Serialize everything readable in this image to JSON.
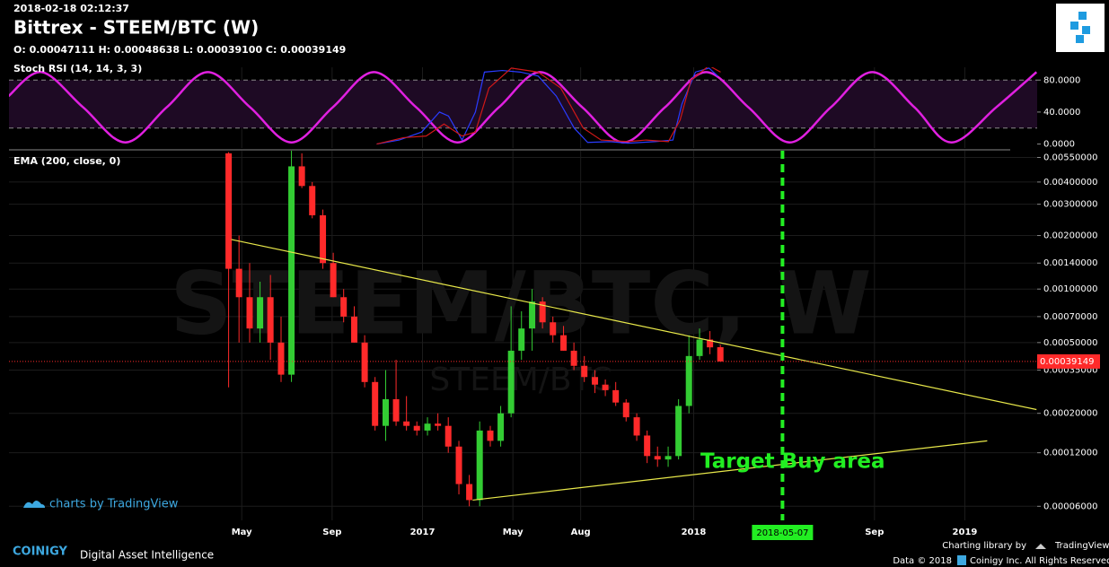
{
  "header": {
    "timestamp": "2018-02-18 02:12:37",
    "title": "Bittrex - STEEM/BTC (W)",
    "ohlc": "O: 0.00047111 H: 0.00048638 L: 0.00039100 C: 0.00039149"
  },
  "footer": {
    "tv_badge": "charts by TradingView",
    "brand": "COINIGY",
    "tagline": "Digital Asset Intelligence",
    "library": "Charting library by",
    "library_name": "TradingView",
    "data_note": "Data © 2018",
    "rights": "Coinigy Inc. All Rights Reserved"
  },
  "chart_data": [
    {
      "type": "line",
      "title": "Stoch RSI (14, 14, 3, 3)",
      "xlim": [
        -6.3,
        39.2
      ],
      "xticks": [
        4,
        8,
        12,
        16,
        19,
        24,
        32,
        36
      ],
      "ylim": [
        -5,
        96
      ],
      "yticks": [
        {
          "value": 80,
          "label": "80.0000"
        },
        {
          "value": 40,
          "label": "40.0000"
        },
        {
          "value": 0,
          "label": "0.0000"
        }
      ],
      "band": [
        20,
        80
      ],
      "band_color": "#1e0a24",
      "series": [
        {
          "color": "#e020e0",
          "smooth": true,
          "x": [
            -6.32,
            -4.85,
            -3.02,
            -1.15,
            0.68,
            2.5,
            4.37,
            6.2,
            8.03,
            9.85,
            11.72,
            13.55,
            15.38,
            17.2,
            19.07,
            20.9,
            22.73,
            24.55,
            26.42,
            28.25,
            30.07,
            31.9,
            33.77,
            35.4,
            37.39,
            39.17
          ],
          "values": [
            60,
            90,
            46,
            2,
            46,
            90,
            46,
            2,
            46,
            90,
            46,
            2,
            46,
            90,
            46,
            2,
            46,
            90,
            46,
            2,
            46,
            90,
            46,
            2,
            46,
            90
          ]
        },
        {
          "color": "#2a3cff",
          "smooth": false,
          "x": [
            9.97,
            10.97,
            11.96,
            12.75,
            13.15,
            13.75,
            14.34,
            14.74,
            15.53,
            16.33,
            17.12,
            17.92,
            18.71,
            19.31,
            20.3,
            21.09,
            22.29,
            23.08,
            23.48,
            24.08,
            24.68,
            25.07
          ],
          "values": [
            0,
            5,
            15,
            40,
            35,
            5,
            40,
            90,
            92,
            90,
            85,
            60,
            20,
            2,
            3,
            1,
            3,
            5,
            50,
            90,
            95,
            85
          ]
        },
        {
          "color": "#d01818",
          "smooth": false,
          "x": [
            9.97,
            11.16,
            12.16,
            12.95,
            13.75,
            14.34,
            14.94,
            15.93,
            17.12,
            18.12,
            19.11,
            19.9,
            21.09,
            21.89,
            22.88,
            23.4,
            23.88,
            24.68,
            25.19
          ],
          "values": [
            0,
            8,
            10,
            25,
            10,
            15,
            70,
            95,
            90,
            70,
            20,
            5,
            3,
            5,
            3,
            30,
            80,
            98,
            90
          ]
        }
      ]
    },
    {
      "type": "candlestick",
      "title": "EMA (200, close, 0)",
      "log": true,
      "grid": true,
      "xlim": [
        -6.3,
        39.2
      ],
      "xticks": [
        {
          "value": 4,
          "label": "May"
        },
        {
          "value": 8,
          "label": "Sep"
        },
        {
          "value": 12,
          "label": "2017"
        },
        {
          "value": 16,
          "label": "May"
        },
        {
          "value": 19,
          "label": "Aug"
        },
        {
          "value": 24,
          "label": "2018"
        },
        {
          "value": 32,
          "label": "Sep"
        },
        {
          "value": 36,
          "label": "2019"
        }
      ],
      "ylim": [
        5e-05,
        0.006
      ],
      "yticks": [
        {
          "value": 0.0055,
          "label": "0.00550000"
        },
        {
          "value": 0.004,
          "label": "0.00400000"
        },
        {
          "value": 0.003,
          "label": "0.00300000"
        },
        {
          "value": 0.002,
          "label": "0.00200000"
        },
        {
          "value": 0.0014,
          "label": "0.00140000"
        },
        {
          "value": 0.001,
          "label": "0.00100000"
        },
        {
          "value": 0.0007,
          "label": "0.00070000"
        },
        {
          "value": 0.0005,
          "label": "0.00050000"
        },
        {
          "value": 0.00035,
          "label": "0.00035000"
        },
        {
          "value": 0.0002,
          "label": "0.00020000"
        },
        {
          "value": 0.00012,
          "label": "0.00012000"
        },
        {
          "value": 6e-05,
          "label": "0.00006000"
        }
      ],
      "up_color": "#33cc33",
      "down_color": "#ff2a2a",
      "x": [
        3.42,
        3.88,
        4.35,
        4.81,
        5.27,
        5.74,
        6.2,
        6.66,
        7.12,
        7.59,
        8.05,
        8.51,
        8.98,
        9.44,
        9.9,
        10.37,
        10.83,
        11.29,
        11.75,
        12.22,
        12.68,
        13.14,
        13.61,
        14.07,
        14.53,
        15.0,
        15.46,
        15.92,
        16.38,
        16.85,
        17.31,
        17.77,
        18.24,
        18.7,
        19.16,
        19.63,
        20.09,
        20.55,
        21.01,
        21.48,
        21.94,
        22.4,
        22.87,
        23.33,
        23.79,
        24.26,
        24.72,
        25.18
      ],
      "open": [
        0.0058,
        0.0013,
        0.0009,
        0.0006,
        0.0009,
        0.0005,
        0.00033,
        0.0049,
        0.0038,
        0.0026,
        0.0014,
        0.0009,
        0.0007,
        0.0005,
        0.0003,
        0.00017,
        0.00024,
        0.00018,
        0.00017,
        0.00016,
        0.000175,
        0.00017,
        0.00013,
        8e-05,
        6.5e-05,
        0.00016,
        0.00014,
        0.0002,
        0.00045,
        0.0006,
        0.00085,
        0.00065,
        0.00055,
        0.00045,
        0.00037,
        0.00032,
        0.00029,
        0.00027,
        0.00023,
        0.00019,
        0.00015,
        0.000115,
        0.00011,
        0.000115,
        0.00022,
        0.00042,
        0.00052,
        0.00047111
      ],
      "high": [
        0.0059,
        0.002,
        0.0014,
        0.0011,
        0.0012,
        0.0007,
        0.006,
        0.0058,
        0.004,
        0.0028,
        0.0016,
        0.001,
        0.0008,
        0.00055,
        0.00032,
        0.00035,
        0.0004,
        0.00025,
        0.00018,
        0.00019,
        0.0002,
        0.00019,
        0.00014,
        9e-05,
        0.00018,
        0.00017,
        0.00022,
        0.0008,
        0.00075,
        0.001,
        0.0009,
        0.0007,
        0.00062,
        0.0005,
        0.00042,
        0.00035,
        0.00031,
        0.0003,
        0.00024,
        0.0002,
        0.00016,
        0.00013,
        0.00013,
        0.00024,
        0.00055,
        0.0006,
        0.00058,
        0.00048638
      ],
      "low": [
        0.00028,
        0.0005,
        0.0005,
        0.0005,
        0.0004,
        0.0003,
        0.0003,
        0.0037,
        0.0025,
        0.0013,
        0.0009,
        0.00065,
        0.0005,
        0.00028,
        0.00016,
        0.00014,
        0.00017,
        0.00016,
        0.00015,
        0.00015,
        0.00016,
        0.00012,
        7e-05,
        6e-05,
        6e-05,
        0.00013,
        0.00013,
        0.00019,
        0.0004,
        0.00045,
        0.0006,
        0.0005,
        0.00045,
        0.00035,
        0.0003,
        0.00026,
        0.00025,
        0.00022,
        0.00018,
        0.00014,
        0.000105,
        0.0001,
        0.0001,
        0.00011,
        0.0002,
        0.0004,
        0.00043,
        0.000391
      ],
      "close": [
        0.0013,
        0.0009,
        0.0006,
        0.0009,
        0.0005,
        0.00033,
        0.0049,
        0.0038,
        0.0026,
        0.0014,
        0.0009,
        0.0007,
        0.0005,
        0.0003,
        0.00017,
        0.00024,
        0.00018,
        0.00017,
        0.00016,
        0.000175,
        0.00017,
        0.00013,
        8e-05,
        6.5e-05,
        0.00016,
        0.00014,
        0.0002,
        0.00045,
        0.0006,
        0.00085,
        0.00065,
        0.00055,
        0.00045,
        0.00037,
        0.00032,
        0.00029,
        0.00027,
        0.00023,
        0.00019,
        0.00015,
        0.000115,
        0.00011,
        0.000115,
        0.00022,
        0.00042,
        0.00052,
        0.00047,
        0.00039149
      ],
      "last_price": {
        "value": 0.00039149,
        "label": "0.00039149",
        "color": "#ff2a2a"
      },
      "trendlines": [
        {
          "color": "#e8e84a",
          "x": [
            3.54,
            39.17
          ],
          "values": [
            0.0019,
            0.00021
          ]
        },
        {
          "color": "#e8e84a",
          "x": [
            14.22,
            36.99
          ],
          "values": [
            6.5e-05,
            0.00014
          ]
        }
      ],
      "marker": {
        "x": 27.93,
        "label": "2018-05-07",
        "color": "#22ee22"
      },
      "annotation": "Target Buy area",
      "watermark": "STEEM/BTC, W",
      "watermark_small": "STEEM/BTC"
    }
  ]
}
